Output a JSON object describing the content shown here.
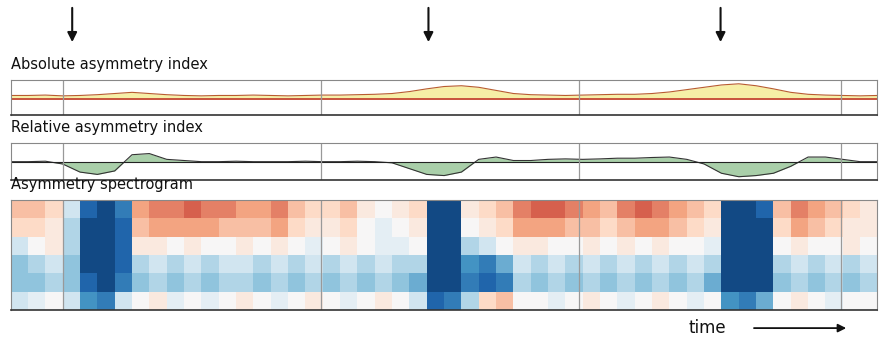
{
  "chart_data": [
    {
      "type": "area",
      "title": "Absolute asymmetry index",
      "x": [
        0,
        2,
        4,
        6,
        8,
        10,
        12,
        14,
        16,
        18,
        20,
        22,
        24,
        26,
        28,
        30,
        32,
        34,
        36,
        38,
        40,
        42,
        44,
        46,
        48,
        50,
        52,
        54,
        56,
        58,
        60,
        62,
        64,
        66,
        68,
        70,
        72,
        74,
        76,
        78,
        80,
        82,
        84,
        86,
        88,
        90,
        92,
        94,
        96,
        98,
        100
      ],
      "values": [
        0.1,
        0.1,
        0.11,
        0.09,
        0.1,
        0.12,
        0.15,
        0.18,
        0.15,
        0.12,
        0.1,
        0.09,
        0.1,
        0.1,
        0.11,
        0.1,
        0.09,
        0.1,
        0.11,
        0.11,
        0.12,
        0.13,
        0.15,
        0.2,
        0.27,
        0.33,
        0.35,
        0.31,
        0.23,
        0.15,
        0.12,
        0.11,
        0.1,
        0.11,
        0.12,
        0.13,
        0.13,
        0.15,
        0.19,
        0.25,
        0.31,
        0.37,
        0.4,
        0.35,
        0.27,
        0.18,
        0.13,
        0.11,
        0.1,
        0.09,
        0.1
      ],
      "baseline": 0,
      "color": "#f6efa6",
      "xlim": [
        0,
        100
      ],
      "ylim": [
        -0.4,
        0.5
      ],
      "tick_labels": false,
      "events": [
        7.1,
        48.2,
        81.9
      ],
      "boundaries": [
        6,
        35.8,
        65.6,
        95.8
      ]
    },
    {
      "type": "area",
      "title": "Relative asymmetry index",
      "x": [
        0,
        2,
        4,
        6,
        8,
        10,
        12,
        14,
        16,
        18,
        20,
        22,
        24,
        26,
        28,
        30,
        32,
        34,
        36,
        38,
        40,
        42,
        44,
        46,
        48,
        50,
        52,
        54,
        56,
        58,
        60,
        62,
        64,
        66,
        68,
        70,
        72,
        74,
        76,
        78,
        80,
        82,
        84,
        86,
        88,
        90,
        92,
        94,
        96,
        98,
        100
      ],
      "values": [
        0.0,
        0.0,
        0.02,
        -0.1,
        -0.45,
        -0.55,
        -0.4,
        0.3,
        0.35,
        0.1,
        0.05,
        0.0,
        0.0,
        0.02,
        0.0,
        0.0,
        0.0,
        0.02,
        0.0,
        0.0,
        0.02,
        0.0,
        -0.05,
        -0.3,
        -0.55,
        -0.6,
        -0.45,
        0.1,
        0.2,
        0.05,
        0.05,
        0.1,
        0.12,
        0.1,
        0.12,
        0.15,
        0.15,
        0.18,
        0.2,
        0.1,
        -0.1,
        -0.5,
        -0.65,
        -0.6,
        -0.5,
        -0.2,
        0.2,
        0.2,
        0.1,
        0.0,
        0.0
      ],
      "baseline": 0,
      "color": "#a9cfa9",
      "xlim": [
        0,
        100
      ],
      "ylim": [
        -0.8,
        0.8
      ],
      "tick_labels": false,
      "boundaries": [
        6,
        35.8,
        65.6,
        95.8
      ]
    },
    {
      "type": "heatmap",
      "title": "Asymmetry spectrogram",
      "xlabel": "time",
      "cells": [
        [
          0.3,
          0.3,
          0.2,
          -0.2,
          -0.8,
          -0.9,
          -0.7,
          0.4,
          0.5,
          0.5,
          0.6,
          0.5,
          0.5,
          0.4,
          0.4,
          0.5,
          0.3,
          0.2,
          0.2,
          0.3,
          0.1,
          0.0,
          0.1,
          0.2,
          -0.9,
          -0.9,
          0.1,
          0.2,
          0.3,
          0.5,
          0.6,
          0.6,
          0.5,
          0.4,
          0.3,
          0.5,
          0.6,
          0.5,
          0.4,
          0.3,
          0.2,
          -0.9,
          -0.9,
          -0.8,
          0.3,
          0.5,
          0.4,
          0.3,
          0.2,
          0.1
        ],
        [
          0.2,
          0.2,
          0.1,
          -0.3,
          -0.9,
          -0.9,
          -0.8,
          0.3,
          0.4,
          0.4,
          0.4,
          0.4,
          0.3,
          0.3,
          0.3,
          0.4,
          0.2,
          0.1,
          0.1,
          0.2,
          0.0,
          -0.1,
          0.0,
          0.1,
          -0.9,
          -0.9,
          0.0,
          0.1,
          0.2,
          0.4,
          0.4,
          0.4,
          0.3,
          0.3,
          0.2,
          0.3,
          0.4,
          0.4,
          0.3,
          0.2,
          0.1,
          -0.9,
          -0.9,
          -0.9,
          0.2,
          0.4,
          0.3,
          0.2,
          0.1,
          0.1
        ],
        [
          -0.2,
          0.0,
          0.1,
          -0.3,
          -0.9,
          -0.9,
          -0.8,
          0.1,
          0.1,
          0.0,
          0.1,
          0.0,
          0.0,
          0.1,
          0.0,
          0.1,
          0.0,
          -0.1,
          0.0,
          0.1,
          0.0,
          -0.1,
          -0.1,
          0.0,
          -0.9,
          -0.9,
          -0.3,
          -0.2,
          0.0,
          0.1,
          0.1,
          0.0,
          0.0,
          0.1,
          0.0,
          0.1,
          0.0,
          0.1,
          0.0,
          0.0,
          -0.1,
          -0.9,
          -0.9,
          -0.9,
          0.0,
          0.1,
          0.0,
          0.0,
          0.1,
          0.0
        ],
        [
          -0.4,
          -0.3,
          -0.2,
          -0.4,
          -0.9,
          -0.9,
          -0.8,
          -0.3,
          -0.2,
          -0.3,
          -0.2,
          -0.3,
          -0.2,
          -0.2,
          -0.3,
          -0.2,
          -0.3,
          -0.2,
          -0.3,
          -0.2,
          -0.3,
          -0.2,
          -0.3,
          -0.3,
          -0.9,
          -0.9,
          -0.6,
          -0.7,
          -0.5,
          -0.2,
          -0.3,
          -0.2,
          -0.3,
          -0.2,
          -0.3,
          -0.2,
          -0.3,
          -0.2,
          -0.3,
          -0.2,
          -0.3,
          -0.9,
          -0.9,
          -0.9,
          -0.3,
          -0.2,
          -0.3,
          -0.2,
          -0.3,
          -0.2
        ],
        [
          -0.4,
          -0.4,
          -0.3,
          -0.4,
          -0.8,
          -0.9,
          -0.7,
          -0.4,
          -0.3,
          -0.4,
          -0.3,
          -0.4,
          -0.3,
          -0.3,
          -0.4,
          -0.3,
          -0.4,
          -0.3,
          -0.4,
          -0.3,
          -0.4,
          -0.3,
          -0.4,
          -0.5,
          -0.9,
          -0.9,
          -0.7,
          -0.8,
          -0.7,
          -0.3,
          -0.4,
          -0.3,
          -0.4,
          -0.3,
          -0.4,
          -0.3,
          -0.4,
          -0.3,
          -0.4,
          -0.3,
          -0.5,
          -0.9,
          -0.9,
          -0.9,
          -0.4,
          -0.3,
          -0.4,
          -0.3,
          -0.4,
          -0.3
        ],
        [
          -0.2,
          -0.1,
          0.0,
          -0.2,
          -0.6,
          -0.7,
          -0.2,
          0.0,
          0.1,
          -0.1,
          0.0,
          -0.1,
          0.0,
          0.1,
          0.0,
          -0.1,
          0.0,
          0.1,
          0.0,
          -0.1,
          0.0,
          0.1,
          0.0,
          -0.2,
          -0.8,
          -0.7,
          -0.3,
          0.2,
          0.3,
          0.0,
          0.0,
          -0.1,
          0.0,
          0.1,
          0.0,
          -0.1,
          0.0,
          0.1,
          0.0,
          -0.1,
          0.0,
          -0.6,
          -0.7,
          -0.5,
          0.0,
          0.1,
          0.0,
          -0.1,
          0.0,
          0.0
        ]
      ],
      "color_range": [
        -1,
        1
      ],
      "xlim": [
        0,
        100
      ],
      "ylim": [
        0,
        6
      ],
      "tick_labels": false,
      "boundaries": [
        6,
        35.8,
        65.6,
        95.8
      ]
    }
  ]
}
